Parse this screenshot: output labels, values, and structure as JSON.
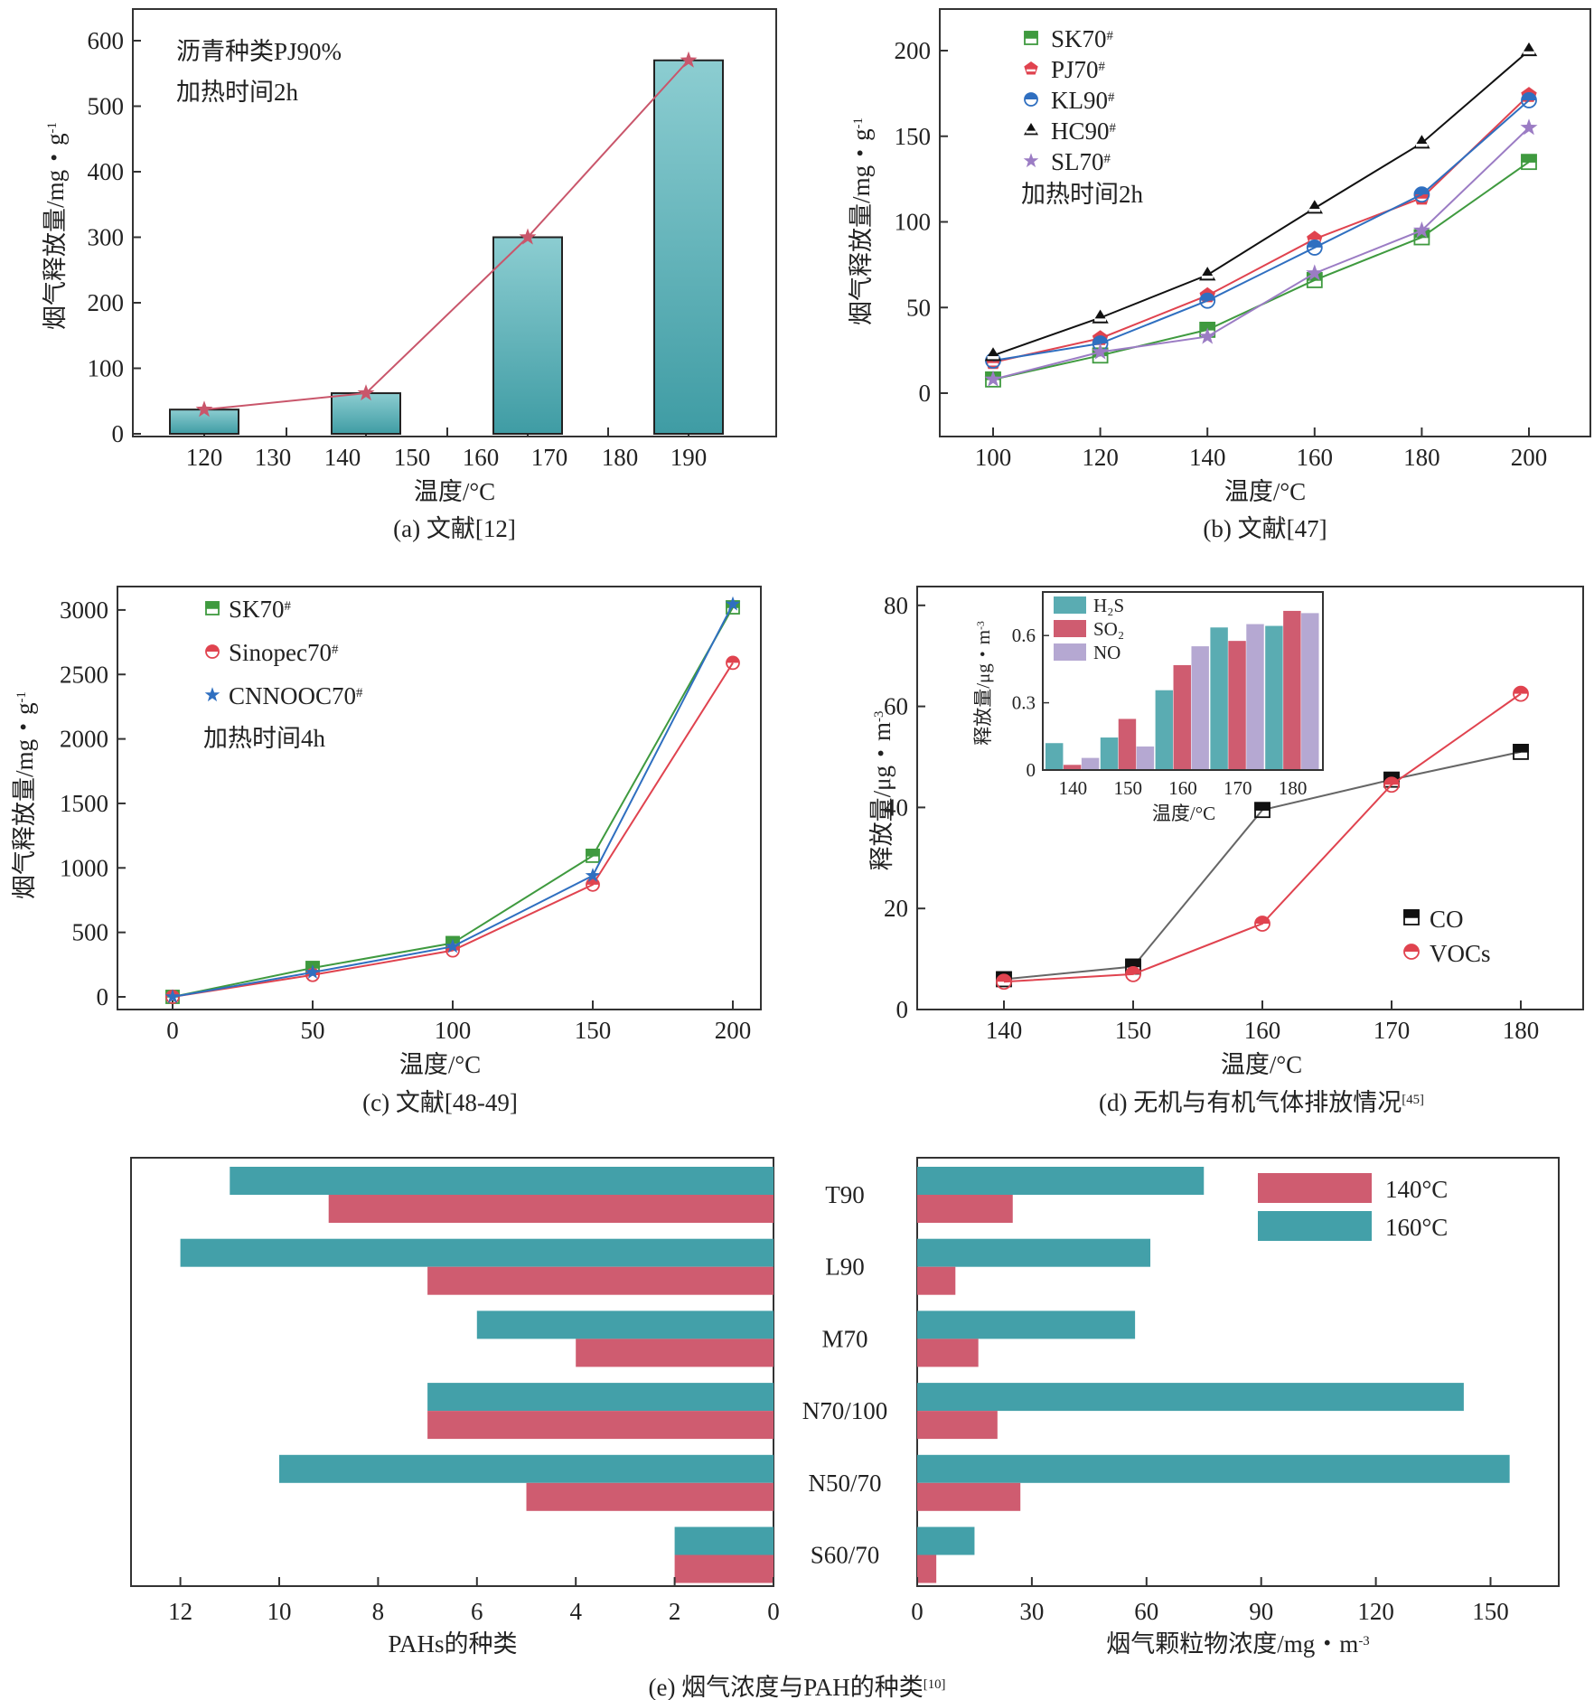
{
  "chart_data": [
    {
      "id": "a",
      "type": "bar",
      "caption": "(a) 文献[12]",
      "xlabel": "温度/°C",
      "ylabel": "烟气释放量/mg・g",
      "ylabel_sup": "-1",
      "xtick_labels": [
        "120",
        "130",
        "140",
        "150",
        "160",
        "170",
        "180",
        "190"
      ],
      "yticks": [
        0,
        100,
        200,
        300,
        400,
        500,
        600
      ],
      "ylim": [
        0,
        650
      ],
      "annotations": [
        "沥青种类PJ90%",
        "加热时间2h"
      ],
      "categories": [
        "120",
        "140",
        "170",
        "190"
      ],
      "values": [
        37,
        62,
        300,
        570
      ],
      "line_values": [
        37,
        62,
        300,
        570
      ],
      "colors": {
        "bar_top": "#8ccdd1",
        "bar_bottom": "#3f9ca4",
        "line": "#c9566b"
      }
    },
    {
      "id": "b",
      "type": "line",
      "caption": "(b) 文献[47]",
      "xlabel": "温度/°C",
      "ylabel": "烟气释放量/mg・g",
      "ylabel_sup": "-1",
      "x": [
        100,
        120,
        140,
        160,
        180,
        200
      ],
      "xticks": [
        100,
        120,
        140,
        160,
        180,
        200
      ],
      "yticks": [
        0,
        50,
        100,
        150,
        200
      ],
      "ylim": [
        -25,
        225
      ],
      "annotation": "加热时间2h",
      "legend_position": "top-left",
      "series": [
        {
          "name": "SK70",
          "sup": "#",
          "marker": "square",
          "color": "#3f9a3f",
          "values": [
            8,
            22,
            37,
            66,
            91,
            135
          ]
        },
        {
          "name": "PJ70",
          "sup": "#",
          "marker": "pentagon",
          "color": "#e0434f",
          "values": [
            18,
            32,
            57,
            90,
            114,
            174
          ]
        },
        {
          "name": "KL90",
          "sup": "#",
          "marker": "circle",
          "color": "#2f6fc0",
          "values": [
            19,
            29,
            54,
            85,
            116,
            171
          ]
        },
        {
          "name": "HC90",
          "sup": "#",
          "marker": "triangle",
          "color": "#111111",
          "values": [
            22,
            44,
            69,
            108,
            146,
            200
          ]
        },
        {
          "name": "SL70",
          "sup": "#",
          "marker": "star",
          "color": "#9b7cc4",
          "values": [
            8,
            24,
            33,
            70,
            95,
            155
          ]
        }
      ]
    },
    {
      "id": "c",
      "type": "line",
      "caption": "(c) 文献[48-49]",
      "xlabel": "温度/°C",
      "ylabel": "烟气释放量/mg・g",
      "ylabel_sup": "-1",
      "x": [
        0,
        50,
        100,
        150,
        200
      ],
      "xticks": [
        0,
        50,
        100,
        150,
        200
      ],
      "yticks": [
        0,
        500,
        1000,
        1500,
        2000,
        2500,
        3000
      ],
      "ylim": [
        -100,
        3200
      ],
      "annotation": "加热时间4h",
      "legend_position": "top-left",
      "series": [
        {
          "name": "SK70",
          "sup": "#",
          "marker": "square",
          "color": "#3f9a3f",
          "values": [
            0,
            224,
            417,
            1094,
            3020
          ]
        },
        {
          "name": "Sinopec70",
          "sup": "#",
          "marker": "circle",
          "color": "#e0434f",
          "values": [
            0,
            170,
            360,
            870,
            2590
          ]
        },
        {
          "name": "CNNOOC70",
          "sup": "#",
          "marker": "star",
          "color": "#2f6fc0",
          "values": [
            0,
            190,
            390,
            940,
            3045
          ]
        }
      ]
    },
    {
      "id": "d",
      "type": "line",
      "caption": "(d) 无机与有机气体排放情况",
      "caption_sup": "[45]",
      "xlabel": "温度/°C",
      "ylabel": "释放量/μg・m",
      "ylabel_sup": "-3",
      "x": [
        140,
        150,
        160,
        170,
        180
      ],
      "xticks": [
        140,
        150,
        160,
        170,
        180
      ],
      "yticks": [
        0,
        20,
        40,
        60,
        80
      ],
      "ylim": [
        0,
        85
      ],
      "legend_position": "bottom-right",
      "series": [
        {
          "name": "CO",
          "marker": "square",
          "color": "#111111",
          "line_color": "#666666",
          "values": [
            6,
            8.5,
            39.5,
            45.5,
            51
          ]
        },
        {
          "name": "VOCs",
          "marker": "circle",
          "color": "#e0434f",
          "line_color": "#e0434f",
          "values": [
            5.5,
            7,
            17,
            44.5,
            62.5
          ]
        }
      ],
      "inset": {
        "type": "bar",
        "xlabel": "温度/°C",
        "ylabel": "释放量/μg・m",
        "ylabel_sup": "-3",
        "categories": [
          "140",
          "150",
          "160",
          "170",
          "180"
        ],
        "yticks": [
          0,
          0.3,
          0.6
        ],
        "ylim": [
          0,
          0.77
        ],
        "legend_position": "top-left",
        "series": [
          {
            "name": "H₂S",
            "color": "#5aacb2",
            "values": [
              0.12,
              0.145,
              0.356,
              0.636,
              0.643
            ]
          },
          {
            "name": "SO₂",
            "color": "#cf5c70",
            "values": [
              0.023,
              0.228,
              0.468,
              0.576,
              0.71
            ]
          },
          {
            "name": "NO",
            "color": "#b5a8d2",
            "values": [
              0.054,
              0.105,
              0.552,
              0.651,
              0.7
            ]
          }
        ]
      }
    },
    {
      "id": "e",
      "type": "bar",
      "orientation": "horizontal-butterfly",
      "caption": "(e) 烟气浓度与PAH的种类",
      "caption_sup": "[10]",
      "categories": [
        "T90",
        "L90",
        "M70",
        "N70/100",
        "N50/70",
        "S60/70"
      ],
      "left": {
        "xlabel": "PAHs的种类",
        "xticks": [
          12,
          10,
          8,
          6,
          4,
          2,
          0
        ],
        "xlim": [
          13,
          0
        ],
        "series": [
          {
            "name": "160°C",
            "color": "#43a0a9",
            "values": [
              11,
              12,
              6,
              7,
              10,
              2
            ]
          },
          {
            "name": "140°C",
            "color": "#cf5c70",
            "values": [
              9,
              7,
              4,
              7,
              5,
              2
            ]
          }
        ]
      },
      "right": {
        "xlabel": "烟气颗粒物浓度/mg・m",
        "xlabel_sup": "-3",
        "xticks": [
          0,
          30,
          60,
          90,
          120,
          150
        ],
        "xlim": [
          0,
          169
        ],
        "series": [
          {
            "name": "160°C",
            "color": "#43a0a9",
            "values": [
              75,
              61,
              57,
              143,
              155,
              15
            ]
          },
          {
            "name": "140°C",
            "color": "#cf5c70",
            "values": [
              25,
              10,
              16,
              21,
              27,
              5
            ]
          }
        ]
      },
      "legend": [
        {
          "name": "140°C",
          "color": "#cf5c70"
        },
        {
          "name": "160°C",
          "color": "#43a0a9"
        }
      ],
      "legend_position": "top-right"
    }
  ]
}
